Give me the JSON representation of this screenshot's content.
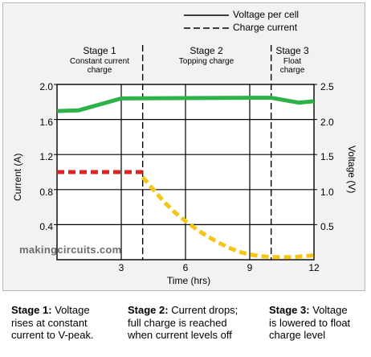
{
  "chart_data": {
    "type": "line",
    "xlabel": "Time (hrs)",
    "ylabel_left": "Current (A)",
    "ylabel_right": "Voltage (V)",
    "xlim": [
      0,
      12
    ],
    "ylim_left": [
      0,
      2.0
    ],
    "ylim_right": [
      0,
      2.5
    ],
    "x_ticks": [
      "3",
      "6",
      "9",
      "12"
    ],
    "y_left_ticks": [
      "0.4",
      "0.8",
      "1.2",
      "1.6",
      "2.0"
    ],
    "y_right_ticks": [
      "0.5",
      "1.0",
      "1.5",
      "2.0",
      "2.5"
    ],
    "grid": true,
    "legend": {
      "position": "top-right",
      "entries": [
        {
          "label": "Voltage per cell",
          "style": "solid"
        },
        {
          "label": "Charge current",
          "style": "dashed"
        }
      ]
    },
    "series": [
      {
        "axis": "right",
        "color": "#2db24a",
        "style": "solid",
        "x": [
          0,
          1,
          3,
          9,
          10,
          11.3,
          12
        ],
        "y": [
          2.12,
          2.13,
          2.3,
          2.31,
          2.31,
          2.24,
          2.26
        ]
      },
      {
        "axis": "left",
        "color": "#e02222",
        "style": "dashed",
        "x": [
          0,
          4
        ],
        "y": [
          1.0,
          1.0
        ]
      },
      {
        "axis": "left",
        "color": "#f5c518",
        "style": "dashed",
        "x": [
          4,
          4.5,
          5,
          5.5,
          6,
          6.5,
          7,
          7.5,
          8,
          8.5,
          9,
          9.5,
          10,
          11,
          12
        ],
        "y": [
          0.94,
          0.8,
          0.66,
          0.54,
          0.44,
          0.35,
          0.27,
          0.2,
          0.14,
          0.09,
          0.06,
          0.04,
          0.03,
          0.03,
          0.05
        ]
      }
    ],
    "stage_dividers_x": [
      4,
      10
    ],
    "stages": [
      {
        "title": "Stage 1",
        "subtitle_lines": [
          "Constant current",
          "charge"
        ]
      },
      {
        "title": "Stage 2",
        "subtitle_lines": [
          "Topping charge"
        ]
      },
      {
        "title": "Stage 3",
        "subtitle_lines": [
          "Float",
          "charge"
        ]
      }
    ]
  },
  "watermark": "makingcircuits.com",
  "captions": [
    {
      "bold": "Stage 1:",
      "line1": " Voltage",
      "line2": "rises at constant",
      "line3": "current to V-peak."
    },
    {
      "bold": "Stage 2:",
      "line1": " Current drops;",
      "line2": "full charge is reached",
      "line3": "when current levels off"
    },
    {
      "bold": "Stage 3:",
      "line1": " Voltage",
      "line2": "is lowered to float",
      "line3": "charge level"
    }
  ],
  "colors": {
    "voltage": "#2db24a",
    "current_stage1": "#e02222",
    "current_stage2": "#f5c518",
    "background": "#f2f2f2"
  }
}
